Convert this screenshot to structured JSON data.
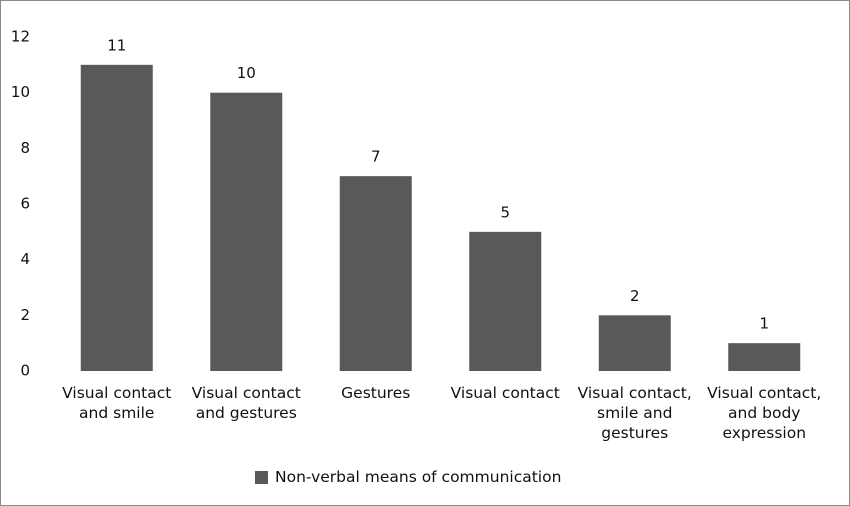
{
  "chart_data": {
    "type": "bar",
    "categories": [
      "Visual contact and smile",
      "Visual contact and gestures",
      "Gestures",
      "Visual contact",
      "Visual contact, smile and gestures",
      "Visual contact, and body expression"
    ],
    "series": [
      {
        "name": "Non-verbal means of communication",
        "color": "#595959",
        "values": [
          11,
          10,
          7,
          5,
          2,
          1
        ]
      }
    ],
    "ylim": [
      0,
      12
    ],
    "yticks": [
      0,
      2,
      4,
      6,
      8,
      10,
      12
    ],
    "grid": false,
    "data_labels": true,
    "legend": "bottom"
  }
}
